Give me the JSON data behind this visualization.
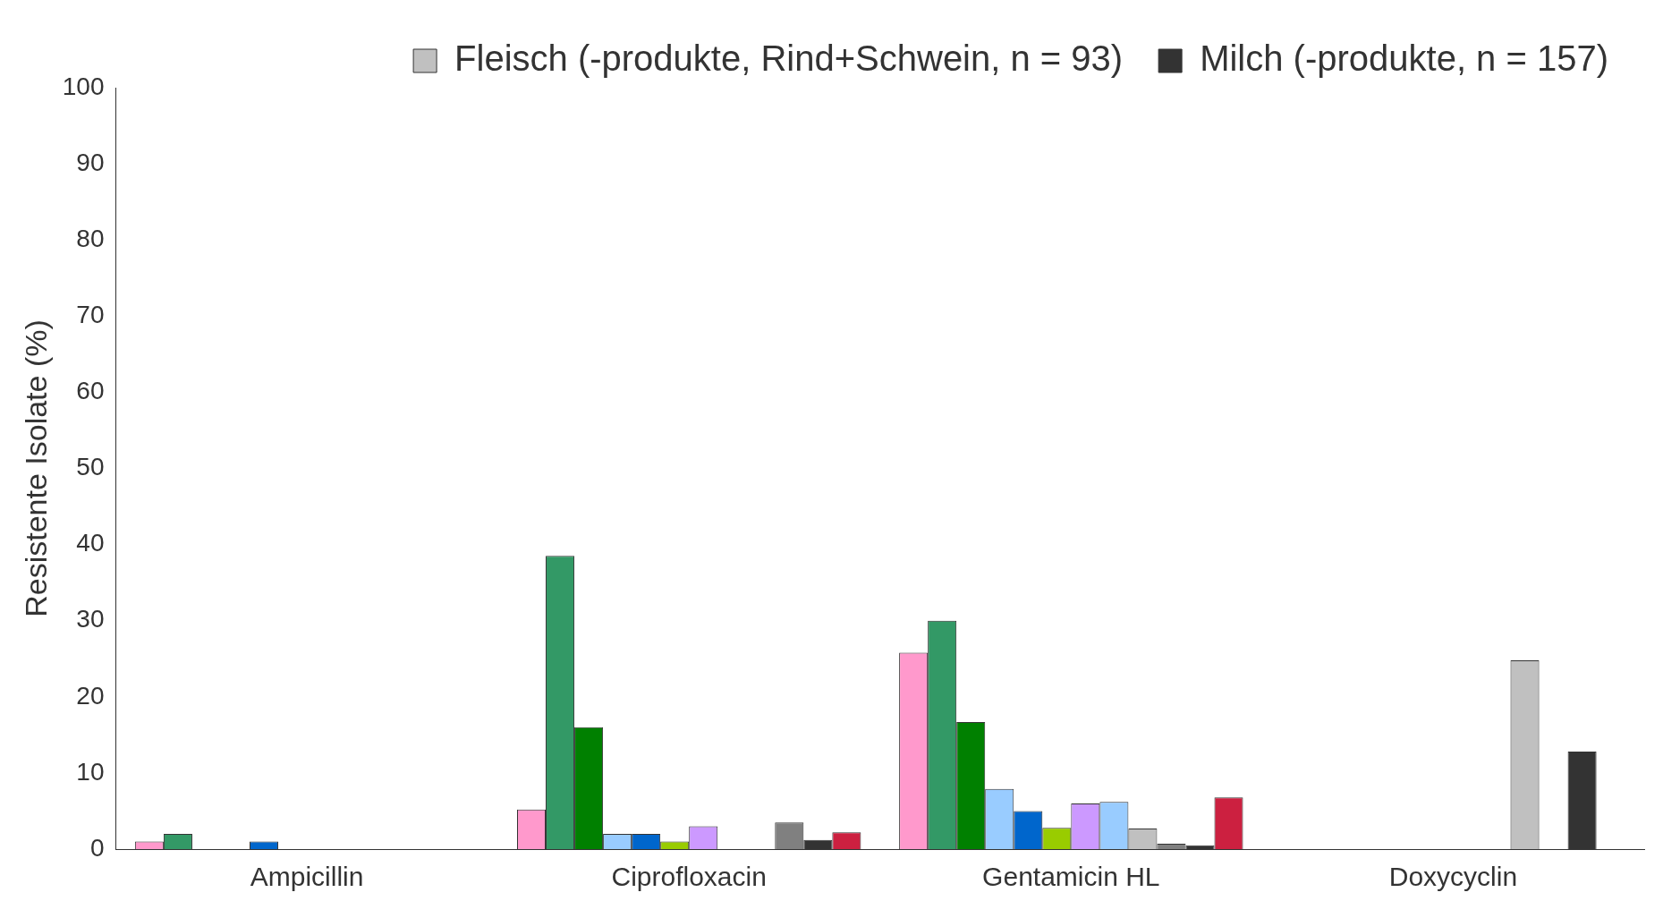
{
  "chart_data": {
    "type": "bar",
    "ylabel": "Resistente Isolate (%)",
    "categories": [
      "Ampicillin",
      "Ciprofloxacin",
      "Gentamicin HL",
      "Doxycyclin"
    ],
    "series": [
      {
        "color": "#ff99cc",
        "values": [
          1,
          5.2,
          25.8,
          null
        ]
      },
      {
        "color": "#339966",
        "values": [
          2,
          38.5,
          30,
          null
        ]
      },
      {
        "color": "#008000",
        "values": [
          null,
          16,
          16.7,
          null
        ]
      },
      {
        "color": "#99ccff",
        "values": [
          null,
          2,
          7.9,
          null
        ]
      },
      {
        "color": "#0066cc",
        "values": [
          1,
          2,
          5,
          null
        ]
      },
      {
        "color": "#99cc00",
        "values": [
          null,
          1,
          2.8,
          null
        ]
      },
      {
        "color": "#cc99ff",
        "values": [
          null,
          3,
          6,
          null
        ]
      },
      {
        "color": "#99ccff",
        "values": [
          null,
          null,
          6.2,
          null
        ]
      },
      {
        "name": "Fleisch (-produkte, Rind+Schwein, n = 93)",
        "color": "#c0c0c0",
        "values": [
          null,
          null,
          2.7,
          24.8
        ]
      },
      {
        "color": "#808080",
        "values": [
          null,
          3.5,
          0.7,
          null
        ]
      },
      {
        "name": "Milch (-produkte, n = 157)",
        "color": "#333333",
        "values": [
          null,
          1.2,
          0.5,
          12.8
        ]
      },
      {
        "color": "#cc2040",
        "values": [
          null,
          2.2,
          6.8,
          null
        ]
      }
    ],
    "ylim": [
      0,
      100
    ],
    "yticks": [
      0,
      10,
      20,
      30,
      40,
      50,
      60,
      70,
      80,
      90,
      100
    ],
    "grid": false,
    "legend": "top right"
  }
}
